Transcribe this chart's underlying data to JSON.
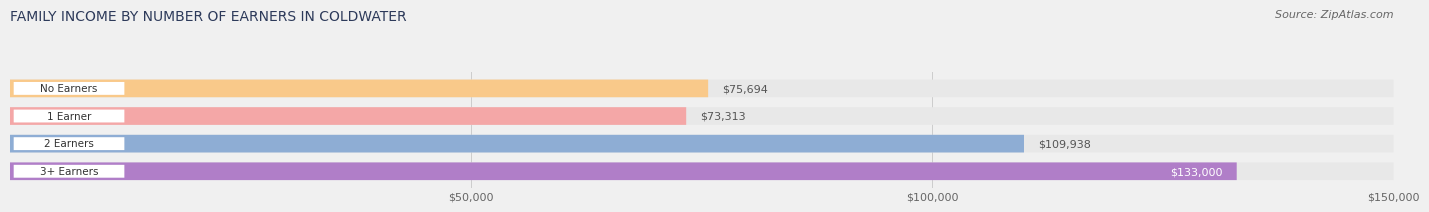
{
  "title": "FAMILY INCOME BY NUMBER OF EARNERS IN COLDWATER",
  "source": "Source: ZipAtlas.com",
  "categories": [
    "No Earners",
    "1 Earner",
    "2 Earners",
    "3+ Earners"
  ],
  "values": [
    75694,
    73313,
    109938,
    133000
  ],
  "bar_colors": [
    "#f9c98a",
    "#f4a7a7",
    "#8eadd4",
    "#b07ec8"
  ],
  "bar_bg_color": "#e8e8e8",
  "label_colors": [
    "#555555",
    "#555555",
    "#555555",
    "#ffffff"
  ],
  "value_labels": [
    "$75,694",
    "$73,313",
    "$109,938",
    "$133,000"
  ],
  "xlim": [
    0,
    150000
  ],
  "xticks": [
    50000,
    100000,
    150000
  ],
  "xtick_labels": [
    "$50,000",
    "$100,000",
    "$150,000"
  ],
  "title_color": "#2d3a5a",
  "title_fontsize": 10,
  "source_fontsize": 8,
  "bar_height": 0.62,
  "background_color": "#f0f0f0"
}
